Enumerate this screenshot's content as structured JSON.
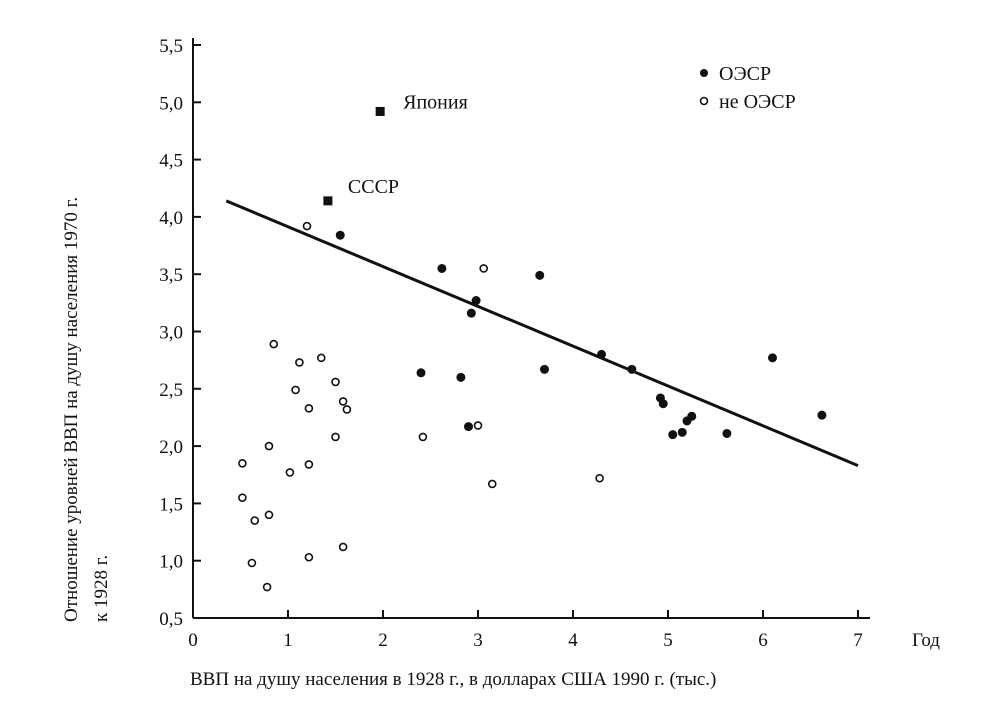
{
  "chart_data": {
    "type": "scatter",
    "title": "",
    "xlabel": "ВВП на душу населения в 1928 г., в долларах США 1990 г. (тыс.)",
    "xlabel_end": "Год",
    "ylabel_lines": [
      "Отношение уровней ВВП на душу населения 1970 г.",
      "к 1928 г."
    ],
    "xlim": [
      0,
      7
    ],
    "ylim": [
      0.5,
      5.5
    ],
    "x_ticks": [
      0,
      1,
      2,
      3,
      4,
      5,
      6,
      7
    ],
    "x_tick_labels": [
      "0",
      "1",
      "2",
      "3",
      "4",
      "5",
      "6",
      "7"
    ],
    "y_ticks": [
      0.5,
      1.0,
      1.5,
      2.0,
      2.5,
      3.0,
      3.5,
      4.0,
      4.5,
      5.0,
      5.5
    ],
    "y_tick_labels": [
      "0,5",
      "1,0",
      "1,5",
      "2,0",
      "2,5",
      "3,0",
      "3,5",
      "4,0",
      "4,5",
      "5,0",
      "5,5"
    ],
    "grid": false,
    "legend_position": "top-right",
    "legend": [
      {
        "label": "ОЭСР",
        "marker": "filled-circle"
      },
      {
        "label": "не ОЭСР",
        "marker": "open-circle"
      }
    ],
    "annotations": [
      {
        "label": "Япония",
        "x": 1.97,
        "y": 4.92,
        "marker": "filled-square"
      },
      {
        "label": "СССР",
        "x": 1.42,
        "y": 4.14,
        "marker": "filled-square"
      }
    ],
    "trend_line": {
      "x": [
        0.35,
        7.0
      ],
      "y": [
        4.14,
        1.83
      ]
    },
    "series": [
      {
        "name": "ОЭСР",
        "marker": "filled-circle",
        "points": [
          {
            "x": 1.55,
            "y": 3.84
          },
          {
            "x": 2.62,
            "y": 3.55
          },
          {
            "x": 2.98,
            "y": 3.27
          },
          {
            "x": 2.93,
            "y": 3.16
          },
          {
            "x": 3.65,
            "y": 3.49
          },
          {
            "x": 3.7,
            "y": 2.67
          },
          {
            "x": 2.4,
            "y": 2.64
          },
          {
            "x": 2.82,
            "y": 2.6
          },
          {
            "x": 2.9,
            "y": 2.17
          },
          {
            "x": 4.3,
            "y": 2.8
          },
          {
            "x": 4.62,
            "y": 2.67
          },
          {
            "x": 4.92,
            "y": 2.42
          },
          {
            "x": 4.95,
            "y": 2.37
          },
          {
            "x": 5.05,
            "y": 2.1
          },
          {
            "x": 5.15,
            "y": 2.12
          },
          {
            "x": 5.2,
            "y": 2.22
          },
          {
            "x": 5.25,
            "y": 2.26
          },
          {
            "x": 5.62,
            "y": 2.11
          },
          {
            "x": 6.1,
            "y": 2.77
          },
          {
            "x": 6.62,
            "y": 2.27
          }
        ]
      },
      {
        "name": "не ОЭСР",
        "marker": "open-circle",
        "points": [
          {
            "x": 1.2,
            "y": 3.92
          },
          {
            "x": 0.85,
            "y": 2.89
          },
          {
            "x": 1.12,
            "y": 2.73
          },
          {
            "x": 1.35,
            "y": 2.77
          },
          {
            "x": 1.08,
            "y": 2.49
          },
          {
            "x": 1.5,
            "y": 2.56
          },
          {
            "x": 1.22,
            "y": 2.33
          },
          {
            "x": 1.58,
            "y": 2.39
          },
          {
            "x": 1.62,
            "y": 2.32
          },
          {
            "x": 1.5,
            "y": 2.08
          },
          {
            "x": 0.8,
            "y": 2.0
          },
          {
            "x": 1.02,
            "y": 1.77
          },
          {
            "x": 1.22,
            "y": 1.84
          },
          {
            "x": 0.52,
            "y": 1.85
          },
          {
            "x": 0.52,
            "y": 1.55
          },
          {
            "x": 0.65,
            "y": 1.35
          },
          {
            "x": 0.8,
            "y": 1.4
          },
          {
            "x": 0.62,
            "y": 0.98
          },
          {
            "x": 1.22,
            "y": 1.03
          },
          {
            "x": 1.58,
            "y": 1.12
          },
          {
            "x": 0.78,
            "y": 0.77
          },
          {
            "x": 2.42,
            "y": 2.08
          },
          {
            "x": 3.0,
            "y": 2.18
          },
          {
            "x": 3.06,
            "y": 3.55
          },
          {
            "x": 3.15,
            "y": 1.67
          },
          {
            "x": 4.28,
            "y": 1.72
          }
        ]
      }
    ]
  }
}
